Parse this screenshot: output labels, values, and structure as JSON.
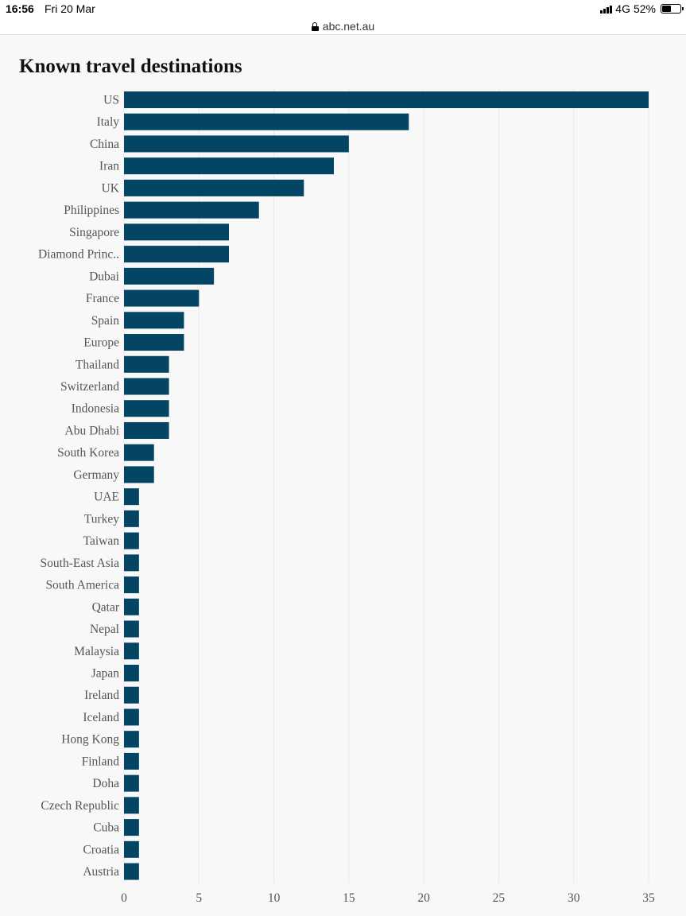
{
  "status_bar": {
    "time": "16:56",
    "date": "Fri 20 Mar",
    "network": "4G",
    "battery": "52%",
    "battery_level": 0.52
  },
  "browser": {
    "url": "abc.net.au",
    "lock_icon": "lock-icon"
  },
  "colors": {
    "bar": "#034563",
    "grid": "#e9e9e9",
    "background": "#f8f8f8"
  },
  "chart_data": {
    "type": "bar",
    "orientation": "horizontal",
    "title": "Known travel destinations",
    "xlabel": "",
    "ylabel": "",
    "xlim": [
      0,
      35
    ],
    "xticks": [
      0,
      5,
      10,
      15,
      20,
      25,
      30,
      35
    ],
    "grid": "vertical",
    "categories": [
      "US",
      "Italy",
      "China",
      "Iran",
      "UK",
      "Philippines",
      "Singapore",
      "Diamond Princ..",
      "Dubai",
      "France",
      "Spain",
      "Europe",
      "Thailand",
      "Switzerland",
      "Indonesia",
      "Abu Dhabi",
      "South Korea",
      "Germany",
      "UAE",
      "Turkey",
      "Taiwan",
      "South-East Asia",
      "South America",
      "Qatar",
      "Nepal",
      "Malaysia",
      "Japan",
      "Ireland",
      "Iceland",
      "Hong Kong",
      "Finland",
      "Doha",
      "Czech Republic",
      "Cuba",
      "Croatia",
      "Austria"
    ],
    "values": [
      35,
      19,
      15,
      14,
      12,
      9,
      7,
      7,
      6,
      5,
      4,
      4,
      3,
      3,
      3,
      3,
      2,
      2,
      1,
      1,
      1,
      1,
      1,
      1,
      1,
      1,
      1,
      1,
      1,
      1,
      1,
      1,
      1,
      1,
      1,
      1
    ]
  }
}
